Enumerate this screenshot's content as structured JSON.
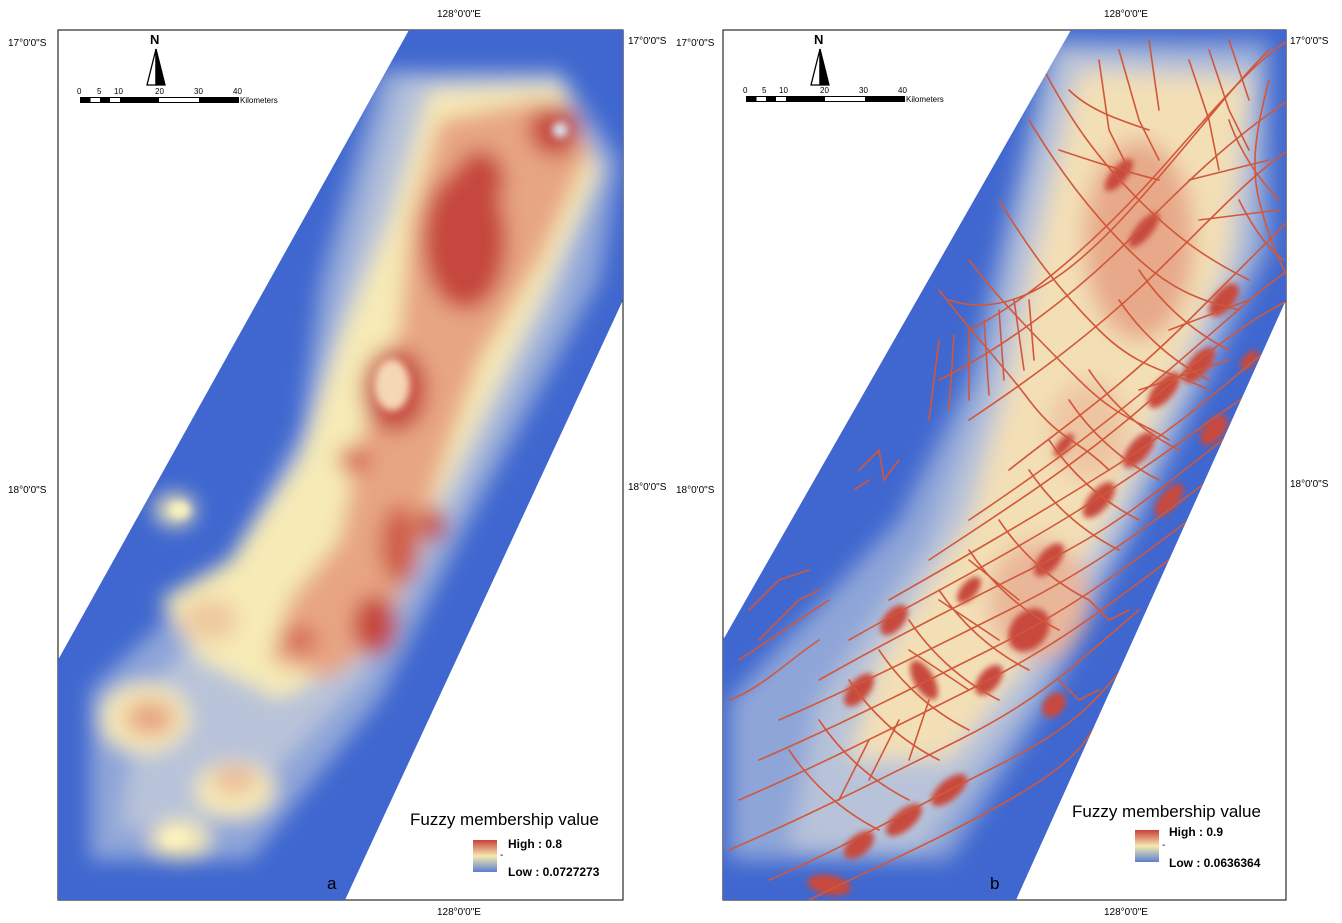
{
  "panels": [
    {
      "id": "a",
      "letter": "a",
      "legend": {
        "title": "Fuzzy membership value",
        "high": "High : 0.8",
        "low": "Low : 0.0727273",
        "dash": "-"
      },
      "coords": {
        "top_lon": "128°0'0\"E",
        "bottom_lon": "128°0'0\"E",
        "left_lat_top": "17°0'0\"S",
        "left_lat_mid": "18°0'0\"S",
        "right_lat_top": "17°0'0\"S",
        "right_lat_mid": "18°0'0\"S"
      }
    },
    {
      "id": "b",
      "letter": "b",
      "legend": {
        "title": "Fuzzy membership value",
        "high": "High : 0.9",
        "low": "Low : 0.0636364",
        "dash": "-"
      },
      "coords": {
        "top_lon": "128°0'0\"E",
        "bottom_lon": "128°0'0\"E",
        "left_lat_top": "17°0'0\"S",
        "left_lat_mid": "18°0'0\"S",
        "right_lat_top": "17°0'0\"S",
        "right_lat_mid": "18°0'0\"S"
      }
    }
  ],
  "north_arrow": {
    "label": "N"
  },
  "scale": {
    "ticks": [
      "0",
      "5",
      "10",
      "20",
      "30",
      "40"
    ],
    "unit": "Kilometers"
  },
  "colors": {
    "high": "#c8403a",
    "mid": "#f6e9b0",
    "low": "#3f67cf",
    "lineament": "#d2573a"
  }
}
